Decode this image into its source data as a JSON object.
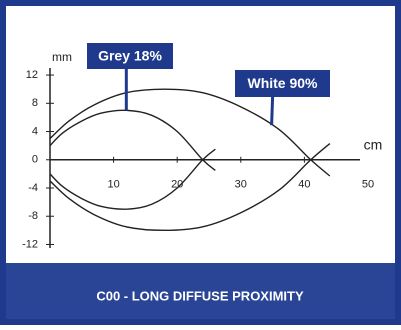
{
  "chart_data": {
    "type": "line",
    "footer": "C00 - LONG DIFFUSE PROXIMITY",
    "ylabel": "mm",
    "xlabel": "cm",
    "xlim": [
      0,
      50
    ],
    "ylim": [
      -12.5,
      13
    ],
    "xticks": [
      10,
      20,
      30,
      40,
      50
    ],
    "yticks": [
      12,
      8,
      4,
      0,
      -4,
      -8,
      -12
    ],
    "series": [
      {
        "name": "Grey 18%",
        "color": "#222222",
        "x": [
          0,
          2,
          5,
          8,
          12,
          16,
          20,
          24,
          26
        ],
        "values": [
          2,
          3.8,
          5.5,
          6.6,
          7,
          6.3,
          4,
          0,
          -1.5
        ],
        "lower_values": [
          -2,
          -3.8,
          -5.5,
          -6.6,
          -7,
          -6.3,
          -4,
          0,
          1.5
        ]
      },
      {
        "name": "White 90%",
        "color": "#222222",
        "x": [
          0,
          3,
          7,
          12,
          18,
          24,
          30,
          36,
          41,
          44
        ],
        "values": [
          3,
          5.5,
          7.8,
          9.5,
          10,
          9.5,
          7.5,
          4.3,
          0,
          -2.3
        ],
        "lower_values": [
          -3,
          -5.5,
          -7.8,
          -9.5,
          -10,
          -9.5,
          -7.5,
          -4.3,
          0,
          2.3
        ]
      }
    ]
  }
}
